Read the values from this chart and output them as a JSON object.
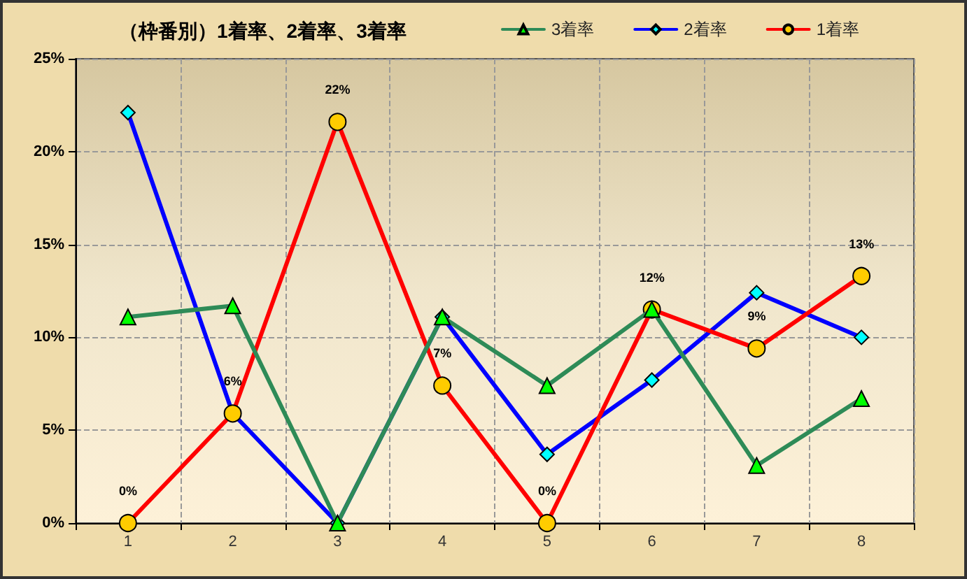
{
  "chart_data": {
    "type": "line",
    "title": "（枠番別）1着率、2着率、3着率",
    "categories": [
      "1",
      "2",
      "3",
      "4",
      "5",
      "6",
      "7",
      "8"
    ],
    "series": [
      {
        "name": "3着率",
        "color": "#2e8b57",
        "marker": "triangle",
        "values": [
          11.1,
          11.7,
          0,
          11.1,
          7.4,
          11.5,
          3.1,
          6.7
        ]
      },
      {
        "name": "2着率",
        "color": "#0000ff",
        "marker": "diamond",
        "values": [
          22.1,
          5.9,
          0,
          11.1,
          3.7,
          7.7,
          12.4,
          10.0
        ]
      },
      {
        "name": "1着率",
        "color": "#ff0000",
        "marker": "circle",
        "values": [
          0,
          5.9,
          21.6,
          7.4,
          0,
          11.5,
          9.4,
          13.3
        ],
        "value_labels": [
          "0%",
          "6%",
          "22%",
          "7%",
          "0%",
          "12%",
          "9%",
          "13%"
        ]
      }
    ],
    "ylim": [
      0,
      25
    ],
    "yticks": [
      {
        "value": 0,
        "label": "0%"
      },
      {
        "value": 5,
        "label": "5%"
      },
      {
        "value": 10,
        "label": "10%"
      },
      {
        "value": 15,
        "label": "15%"
      },
      {
        "value": 20,
        "label": "20%"
      },
      {
        "value": 25,
        "label": "25%"
      }
    ],
    "grid": true,
    "legend": "top right",
    "line_style": "solid"
  }
}
